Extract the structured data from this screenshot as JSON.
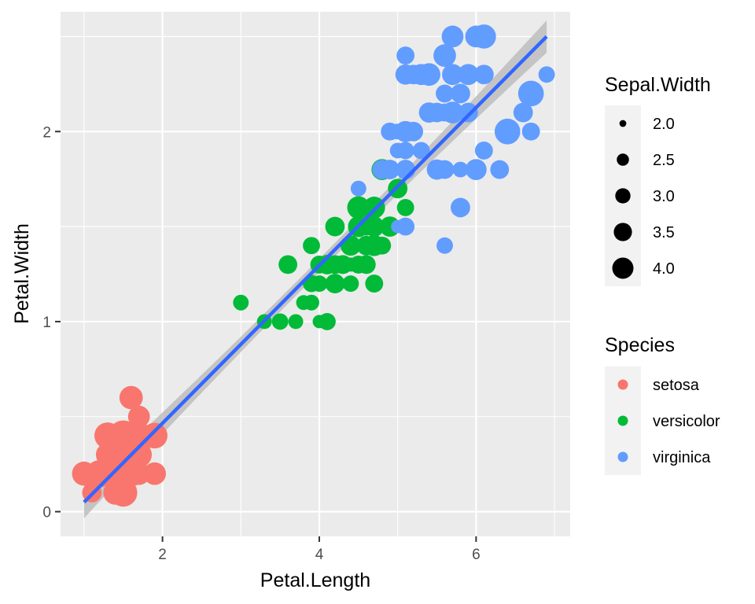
{
  "chart_data": {
    "type": "scatter",
    "xlabel": "Petal.Length",
    "ylabel": "Petal.Width",
    "xlim": [
      0.7,
      7.2
    ],
    "ylim": [
      -0.13,
      2.63
    ],
    "x_ticks": [
      {
        "value": 2,
        "label": "2"
      },
      {
        "value": 4,
        "label": "4"
      },
      {
        "value": 6,
        "label": "6"
      }
    ],
    "y_ticks": [
      {
        "value": 0,
        "label": "0"
      },
      {
        "value": 1,
        "label": "1"
      },
      {
        "value": 2,
        "label": "2"
      }
    ],
    "grid": true,
    "size_legend": {
      "title": "Sepal.Width",
      "entries": [
        {
          "value": 2.0,
          "label": "2.0"
        },
        {
          "value": 2.5,
          "label": "2.5"
        },
        {
          "value": 3.0,
          "label": "3.0"
        },
        {
          "value": 3.5,
          "label": "3.5"
        },
        {
          "value": 4.0,
          "label": "4.0"
        }
      ]
    },
    "color_legend": {
      "title": "Species",
      "entries": [
        {
          "name": "setosa",
          "color": "#F8766D"
        },
        {
          "name": "versicolor",
          "color": "#00BA38"
        },
        {
          "name": "virginica",
          "color": "#619CFF"
        }
      ]
    },
    "legend_position": "right",
    "trend_line": {
      "method": "linear",
      "x": [
        1.0,
        6.9
      ],
      "y": [
        0.05,
        2.5
      ],
      "color": "#3366FF",
      "ci_color": "#bdbdbd"
    },
    "series": [
      {
        "name": "setosa",
        "color": "#F8766D",
        "points": [
          [
            1.4,
            0.2,
            3.5
          ],
          [
            1.4,
            0.2,
            3.0
          ],
          [
            1.3,
            0.2,
            3.2
          ],
          [
            1.5,
            0.2,
            3.1
          ],
          [
            1.4,
            0.2,
            3.6
          ],
          [
            1.7,
            0.4,
            3.9
          ],
          [
            1.4,
            0.3,
            3.4
          ],
          [
            1.5,
            0.2,
            3.4
          ],
          [
            1.4,
            0.2,
            2.9
          ],
          [
            1.5,
            0.1,
            3.1
          ],
          [
            1.5,
            0.2,
            3.7
          ],
          [
            1.6,
            0.2,
            3.4
          ],
          [
            1.4,
            0.1,
            3.0
          ],
          [
            1.1,
            0.1,
            3.0
          ],
          [
            1.2,
            0.2,
            4.0
          ],
          [
            1.5,
            0.4,
            4.4
          ],
          [
            1.3,
            0.4,
            3.9
          ],
          [
            1.4,
            0.3,
            3.5
          ],
          [
            1.7,
            0.3,
            3.8
          ],
          [
            1.5,
            0.3,
            3.8
          ],
          [
            1.7,
            0.2,
            3.4
          ],
          [
            1.5,
            0.4,
            3.7
          ],
          [
            1.0,
            0.2,
            3.6
          ],
          [
            1.7,
            0.5,
            3.3
          ],
          [
            1.9,
            0.2,
            3.4
          ],
          [
            1.6,
            0.2,
            3.0
          ],
          [
            1.6,
            0.4,
            3.4
          ],
          [
            1.5,
            0.2,
            3.5
          ],
          [
            1.4,
            0.2,
            3.4
          ],
          [
            1.6,
            0.2,
            3.2
          ],
          [
            1.6,
            0.2,
            3.1
          ],
          [
            1.5,
            0.4,
            3.4
          ],
          [
            1.5,
            0.1,
            4.1
          ],
          [
            1.4,
            0.2,
            4.2
          ],
          [
            1.5,
            0.2,
            3.1
          ],
          [
            1.2,
            0.2,
            3.2
          ],
          [
            1.3,
            0.2,
            3.5
          ],
          [
            1.4,
            0.1,
            3.6
          ],
          [
            1.3,
            0.2,
            3.0
          ],
          [
            1.5,
            0.2,
            3.4
          ],
          [
            1.3,
            0.3,
            3.5
          ],
          [
            1.3,
            0.3,
            2.3
          ],
          [
            1.3,
            0.2,
            3.2
          ],
          [
            1.6,
            0.6,
            3.5
          ],
          [
            1.9,
            0.4,
            3.8
          ],
          [
            1.4,
            0.3,
            3.0
          ],
          [
            1.6,
            0.2,
            3.8
          ],
          [
            1.4,
            0.2,
            3.2
          ],
          [
            1.5,
            0.2,
            3.7
          ],
          [
            1.4,
            0.2,
            3.3
          ]
        ]
      },
      {
        "name": "versicolor",
        "color": "#00BA38",
        "points": [
          [
            4.7,
            1.4,
            3.2
          ],
          [
            4.5,
            1.5,
            3.2
          ],
          [
            4.9,
            1.5,
            3.1
          ],
          [
            4.0,
            1.3,
            2.3
          ],
          [
            4.6,
            1.5,
            2.8
          ],
          [
            4.5,
            1.3,
            2.8
          ],
          [
            4.7,
            1.6,
            3.3
          ],
          [
            3.3,
            1.0,
            2.4
          ],
          [
            4.6,
            1.3,
            2.9
          ],
          [
            3.9,
            1.4,
            2.7
          ],
          [
            3.5,
            1.0,
            2.0
          ],
          [
            4.2,
            1.5,
            3.0
          ],
          [
            4.0,
            1.0,
            2.2
          ],
          [
            4.7,
            1.4,
            2.9
          ],
          [
            3.6,
            1.3,
            2.9
          ],
          [
            4.4,
            1.4,
            3.1
          ],
          [
            4.5,
            1.5,
            3.0
          ],
          [
            4.1,
            1.0,
            2.7
          ],
          [
            4.5,
            1.5,
            2.2
          ],
          [
            3.9,
            1.1,
            2.5
          ],
          [
            4.8,
            1.8,
            3.2
          ],
          [
            4.0,
            1.3,
            2.8
          ],
          [
            4.9,
            1.5,
            2.5
          ],
          [
            4.7,
            1.2,
            2.8
          ],
          [
            4.3,
            1.3,
            2.9
          ],
          [
            4.4,
            1.4,
            3.0
          ],
          [
            4.8,
            1.4,
            2.8
          ],
          [
            5.0,
            1.7,
            3.0
          ],
          [
            4.5,
            1.5,
            2.9
          ],
          [
            3.5,
            1.0,
            2.6
          ],
          [
            3.8,
            1.1,
            2.4
          ],
          [
            3.7,
            1.0,
            2.4
          ],
          [
            3.9,
            1.2,
            2.7
          ],
          [
            5.1,
            1.6,
            2.7
          ],
          [
            4.5,
            1.5,
            3.0
          ],
          [
            4.5,
            1.6,
            3.4
          ],
          [
            4.7,
            1.5,
            3.1
          ],
          [
            4.4,
            1.3,
            2.3
          ],
          [
            4.1,
            1.3,
            3.0
          ],
          [
            4.0,
            1.3,
            2.5
          ],
          [
            4.4,
            1.2,
            2.6
          ],
          [
            4.6,
            1.4,
            3.0
          ],
          [
            4.0,
            1.2,
            2.6
          ],
          [
            3.3,
            1.0,
            2.3
          ],
          [
            4.2,
            1.3,
            2.7
          ],
          [
            4.2,
            1.2,
            3.0
          ],
          [
            4.2,
            1.3,
            2.9
          ],
          [
            4.3,
            1.3,
            2.9
          ],
          [
            3.0,
            1.1,
            2.5
          ],
          [
            4.1,
            1.3,
            2.8
          ]
        ]
      },
      {
        "name": "virginica",
        "color": "#619CFF",
        "points": [
          [
            6.0,
            2.5,
            3.3
          ],
          [
            5.1,
            1.9,
            2.7
          ],
          [
            5.9,
            2.1,
            3.0
          ],
          [
            5.6,
            1.8,
            2.9
          ],
          [
            5.8,
            2.2,
            3.0
          ],
          [
            6.6,
            2.1,
            3.0
          ],
          [
            4.5,
            1.7,
            2.5
          ],
          [
            6.3,
            1.8,
            2.9
          ],
          [
            5.8,
            1.8,
            2.5
          ],
          [
            6.1,
            2.5,
            3.6
          ],
          [
            5.1,
            2.0,
            3.2
          ],
          [
            5.3,
            1.9,
            2.7
          ],
          [
            5.5,
            2.1,
            3.0
          ],
          [
            5.0,
            2.0,
            2.5
          ],
          [
            5.1,
            2.4,
            2.8
          ],
          [
            5.3,
            2.3,
            3.2
          ],
          [
            5.5,
            1.8,
            3.0
          ],
          [
            6.7,
            2.2,
            3.8
          ],
          [
            6.9,
            2.3,
            2.6
          ],
          [
            5.0,
            1.5,
            2.2
          ],
          [
            5.7,
            2.3,
            3.2
          ],
          [
            4.9,
            2.0,
            2.8
          ],
          [
            6.7,
            2.0,
            2.8
          ],
          [
            4.9,
            1.8,
            2.7
          ],
          [
            5.7,
            2.1,
            3.3
          ],
          [
            6.0,
            1.8,
            3.2
          ],
          [
            4.8,
            1.8,
            2.8
          ],
          [
            4.9,
            1.8,
            3.0
          ],
          [
            5.6,
            2.1,
            2.8
          ],
          [
            5.8,
            1.6,
            3.0
          ],
          [
            6.1,
            1.9,
            2.8
          ],
          [
            6.4,
            2.0,
            3.8
          ],
          [
            5.6,
            2.2,
            2.8
          ],
          [
            5.1,
            1.5,
            2.8
          ],
          [
            5.6,
            1.4,
            2.6
          ],
          [
            6.1,
            2.3,
            3.0
          ],
          [
            5.6,
            2.4,
            3.4
          ],
          [
            5.5,
            1.8,
            3.1
          ],
          [
            4.8,
            1.8,
            3.0
          ],
          [
            5.4,
            2.1,
            3.1
          ],
          [
            5.6,
            2.4,
            3.1
          ],
          [
            5.1,
            2.3,
            3.1
          ],
          [
            5.1,
            1.9,
            2.7
          ],
          [
            5.9,
            2.3,
            3.2
          ],
          [
            5.7,
            2.5,
            3.3
          ],
          [
            5.2,
            2.3,
            3.0
          ],
          [
            5.0,
            1.9,
            2.5
          ],
          [
            5.2,
            2.0,
            3.0
          ],
          [
            5.4,
            2.3,
            3.4
          ],
          [
            5.1,
            1.8,
            3.0
          ]
        ]
      }
    ]
  }
}
